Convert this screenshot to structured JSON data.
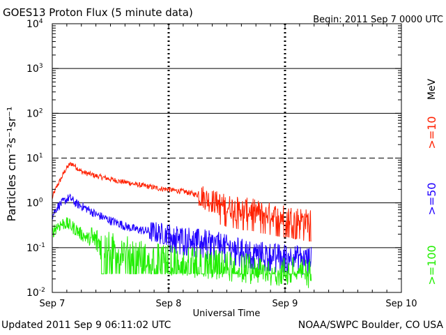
{
  "chart_data": {
    "type": "line",
    "title": "GOES13 Proton Flux (5 minute data)",
    "begin_label": "Begin: 2011 Sep 7 0000 UTC",
    "xlabel": "Universal Time",
    "ylabel": "Particles cm⁻²s⁻¹sr⁻¹",
    "yscale": "log",
    "ylim": [
      0.01,
      10000
    ],
    "xlim_hours": [
      0,
      72
    ],
    "x_ticks": [
      {
        "hour": 0,
        "label": "Sep 7"
      },
      {
        "hour": 24,
        "label": "Sep 8"
      },
      {
        "hour": 48,
        "label": "Sep 9"
      },
      {
        "hour": 72,
        "label": "Sep 10"
      }
    ],
    "y_ticks": [
      {
        "value": 0.01,
        "base": "10",
        "exp": "-2"
      },
      {
        "value": 0.1,
        "base": "10",
        "exp": "-1"
      },
      {
        "value": 1,
        "base": "10",
        "exp": "0"
      },
      {
        "value": 10,
        "base": "10",
        "exp": "1"
      },
      {
        "value": 100,
        "base": "10",
        "exp": "2"
      },
      {
        "value": 1000,
        "base": "10",
        "exp": "3"
      },
      {
        "value": 10000,
        "base": "10",
        "exp": "4"
      }
    ],
    "unit_label": "MeV",
    "series": [
      {
        "name": ">=10",
        "color": "#ff2000",
        "x_hours": [
          0,
          0.5,
          1,
          1.5,
          2,
          2.5,
          3,
          3.5,
          4,
          4.5,
          5,
          5.5,
          6,
          7,
          8,
          9,
          10,
          11,
          12,
          13,
          14,
          15,
          16,
          17,
          18,
          19,
          20,
          21,
          22,
          23,
          24,
          25,
          26,
          27,
          28,
          29,
          30,
          31,
          32,
          33,
          34,
          35,
          36,
          37,
          38,
          39,
          40,
          41,
          42,
          43,
          44,
          45,
          46,
          47,
          48,
          49,
          50,
          51,
          52,
          53
        ],
        "values": [
          1.3,
          1.8,
          2.4,
          3.0,
          3.8,
          5.0,
          6.0,
          7.0,
          7.5,
          7.0,
          6.2,
          5.6,
          5.0,
          4.6,
          4.3,
          4.0,
          3.8,
          3.6,
          3.4,
          3.2,
          3.0,
          2.9,
          2.8,
          2.6,
          2.5,
          2.4,
          2.3,
          2.2,
          2.1,
          2.05,
          2.0,
          1.9,
          1.85,
          1.8,
          1.7,
          1.6,
          1.5,
          1.4,
          1.2,
          1.1,
          1.0,
          0.9,
          0.85,
          0.8,
          0.75,
          0.72,
          0.7,
          0.68,
          0.65,
          0.6,
          0.58,
          0.55,
          0.52,
          0.5,
          0.5,
          0.48,
          0.45,
          0.45,
          0.4,
          0.4
        ]
      },
      {
        "name": ">=50",
        "color": "#2000ff",
        "x_hours": [
          0,
          0.5,
          1,
          1.5,
          2,
          2.5,
          3,
          3.5,
          4,
          4.5,
          5,
          5.5,
          6,
          7,
          8,
          9,
          10,
          11,
          12,
          13,
          14,
          15,
          16,
          17,
          18,
          19,
          20,
          21,
          22,
          23,
          24,
          25,
          26,
          27,
          28,
          29,
          30,
          31,
          32,
          33,
          34,
          35,
          36,
          37,
          38,
          39,
          40,
          41,
          42,
          43,
          44,
          45,
          46,
          47,
          48,
          49,
          50,
          51,
          52,
          53
        ],
        "values": [
          0.5,
          0.65,
          0.8,
          0.9,
          1.0,
          1.1,
          1.2,
          1.3,
          1.2,
          1.05,
          0.95,
          0.9,
          0.85,
          0.75,
          0.65,
          0.55,
          0.5,
          0.45,
          0.4,
          0.37,
          0.34,
          0.3,
          0.28,
          0.26,
          0.25,
          0.24,
          0.23,
          0.22,
          0.21,
          0.2,
          0.2,
          0.19,
          0.18,
          0.17,
          0.17,
          0.16,
          0.15,
          0.15,
          0.14,
          0.13,
          0.13,
          0.12,
          0.11,
          0.1,
          0.1,
          0.09,
          0.09,
          0.085,
          0.08,
          0.08,
          0.075,
          0.075,
          0.07,
          0.07,
          0.07,
          0.065,
          0.065,
          0.065,
          0.06,
          0.06
        ]
      },
      {
        "name": ">=100",
        "color": "#20ee00",
        "x_hours": [
          0,
          0.5,
          1,
          1.5,
          2,
          2.5,
          3,
          3.5,
          4,
          4.5,
          5,
          5.5,
          6,
          7,
          8,
          9,
          10,
          11,
          12,
          13,
          14,
          15,
          16,
          17,
          18,
          19,
          20,
          21,
          22,
          23,
          24,
          25,
          26,
          27,
          28,
          29,
          30,
          31,
          32,
          33,
          34,
          35,
          36,
          37,
          38,
          39,
          40,
          41,
          42,
          43,
          44,
          45,
          46,
          47,
          48,
          49,
          50,
          51,
          52,
          53
        ],
        "values": [
          0.22,
          0.26,
          0.3,
          0.32,
          0.34,
          0.35,
          0.34,
          0.32,
          0.3,
          0.27,
          0.25,
          0.22,
          0.2,
          0.17,
          0.15,
          0.14,
          0.12,
          0.11,
          0.1,
          0.095,
          0.09,
          0.085,
          0.08,
          0.075,
          0.07,
          0.065,
          0.062,
          0.06,
          0.058,
          0.055,
          0.054,
          0.052,
          0.05,
          0.048,
          0.047,
          0.046,
          0.045,
          0.044,
          0.043,
          0.042,
          0.041,
          0.04,
          0.039,
          0.038,
          0.037,
          0.036,
          0.035,
          0.034,
          0.033,
          0.032,
          0.031,
          0.031,
          0.03,
          0.03,
          0.029,
          0.029,
          0.028,
          0.028,
          0.027,
          0.027
        ]
      }
    ]
  },
  "footer": {
    "updated": "Updated 2011 Sep  9 06:11:02 UTC",
    "source": "NOAA/SWPC Boulder, CO USA"
  }
}
